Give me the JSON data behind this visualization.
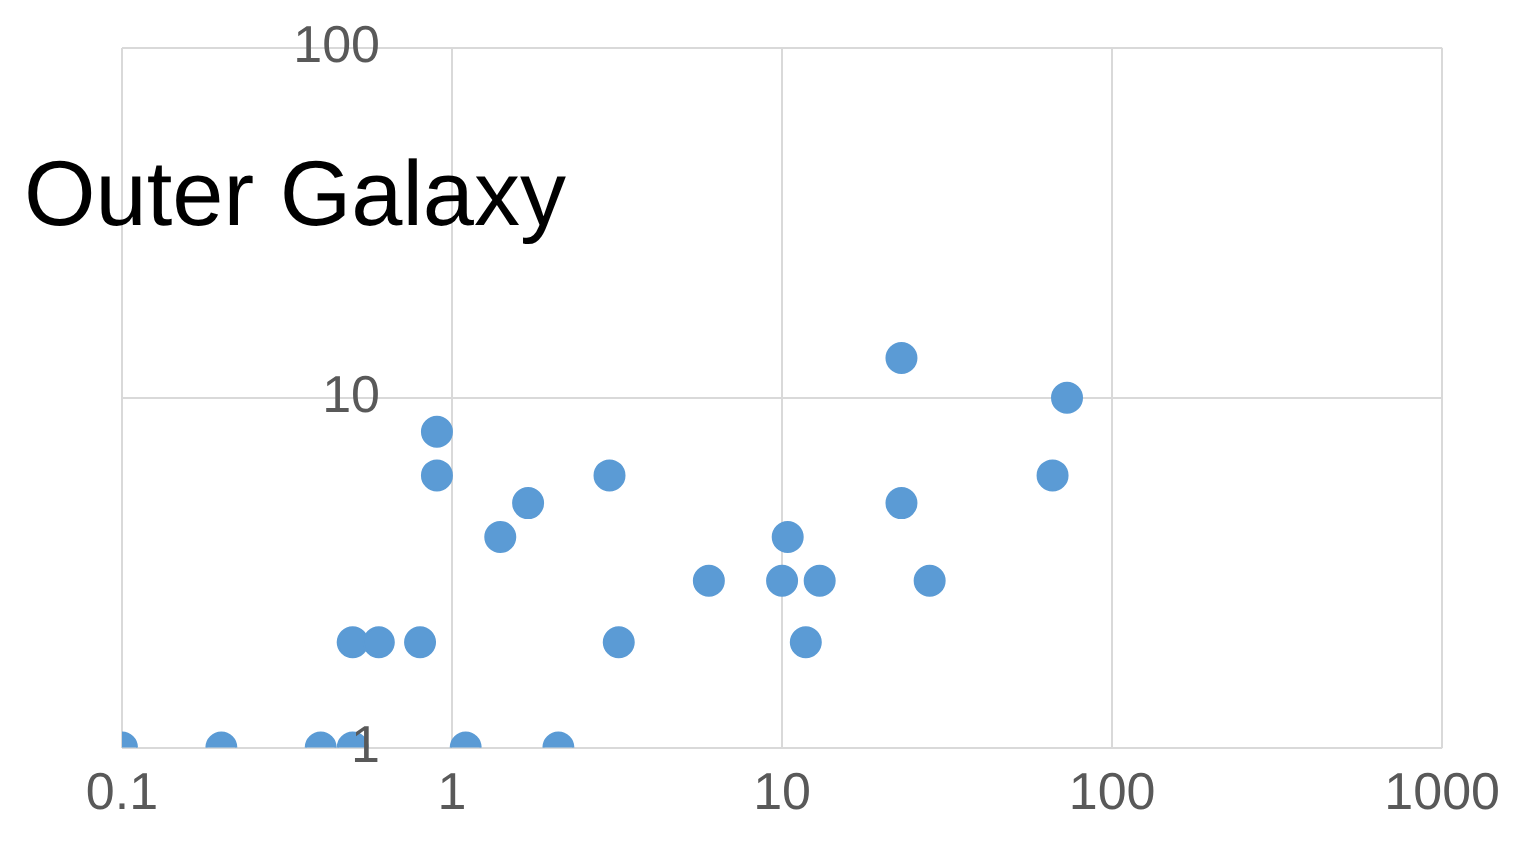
{
  "chart_data": {
    "type": "scatter",
    "title": "Outer Galaxy",
    "log": "xy",
    "grid": true,
    "marker": "circle",
    "color": "#5b9bd5",
    "x": [
      0.1,
      0.2,
      0.4,
      0.5,
      1.1,
      2.1,
      0.5,
      0.6,
      0.8,
      0.9,
      0.9,
      1.4,
      1.7,
      3,
      3.2,
      6,
      10,
      10.4,
      11.8,
      13,
      23,
      23,
      28,
      66,
      73
    ],
    "values": [
      1,
      1,
      1,
      1,
      1,
      1,
      2,
      2,
      2,
      6,
      8,
      4,
      5,
      6,
      2,
      3,
      3,
      4,
      2,
      3,
      13,
      5,
      3,
      6,
      10
    ],
    "xlim": [
      0.1,
      1000
    ],
    "xticks": [
      0.1,
      1,
      10,
      100,
      1000
    ],
    "ylim": [
      1,
      100
    ],
    "yticks": [
      1,
      10,
      100
    ]
  }
}
